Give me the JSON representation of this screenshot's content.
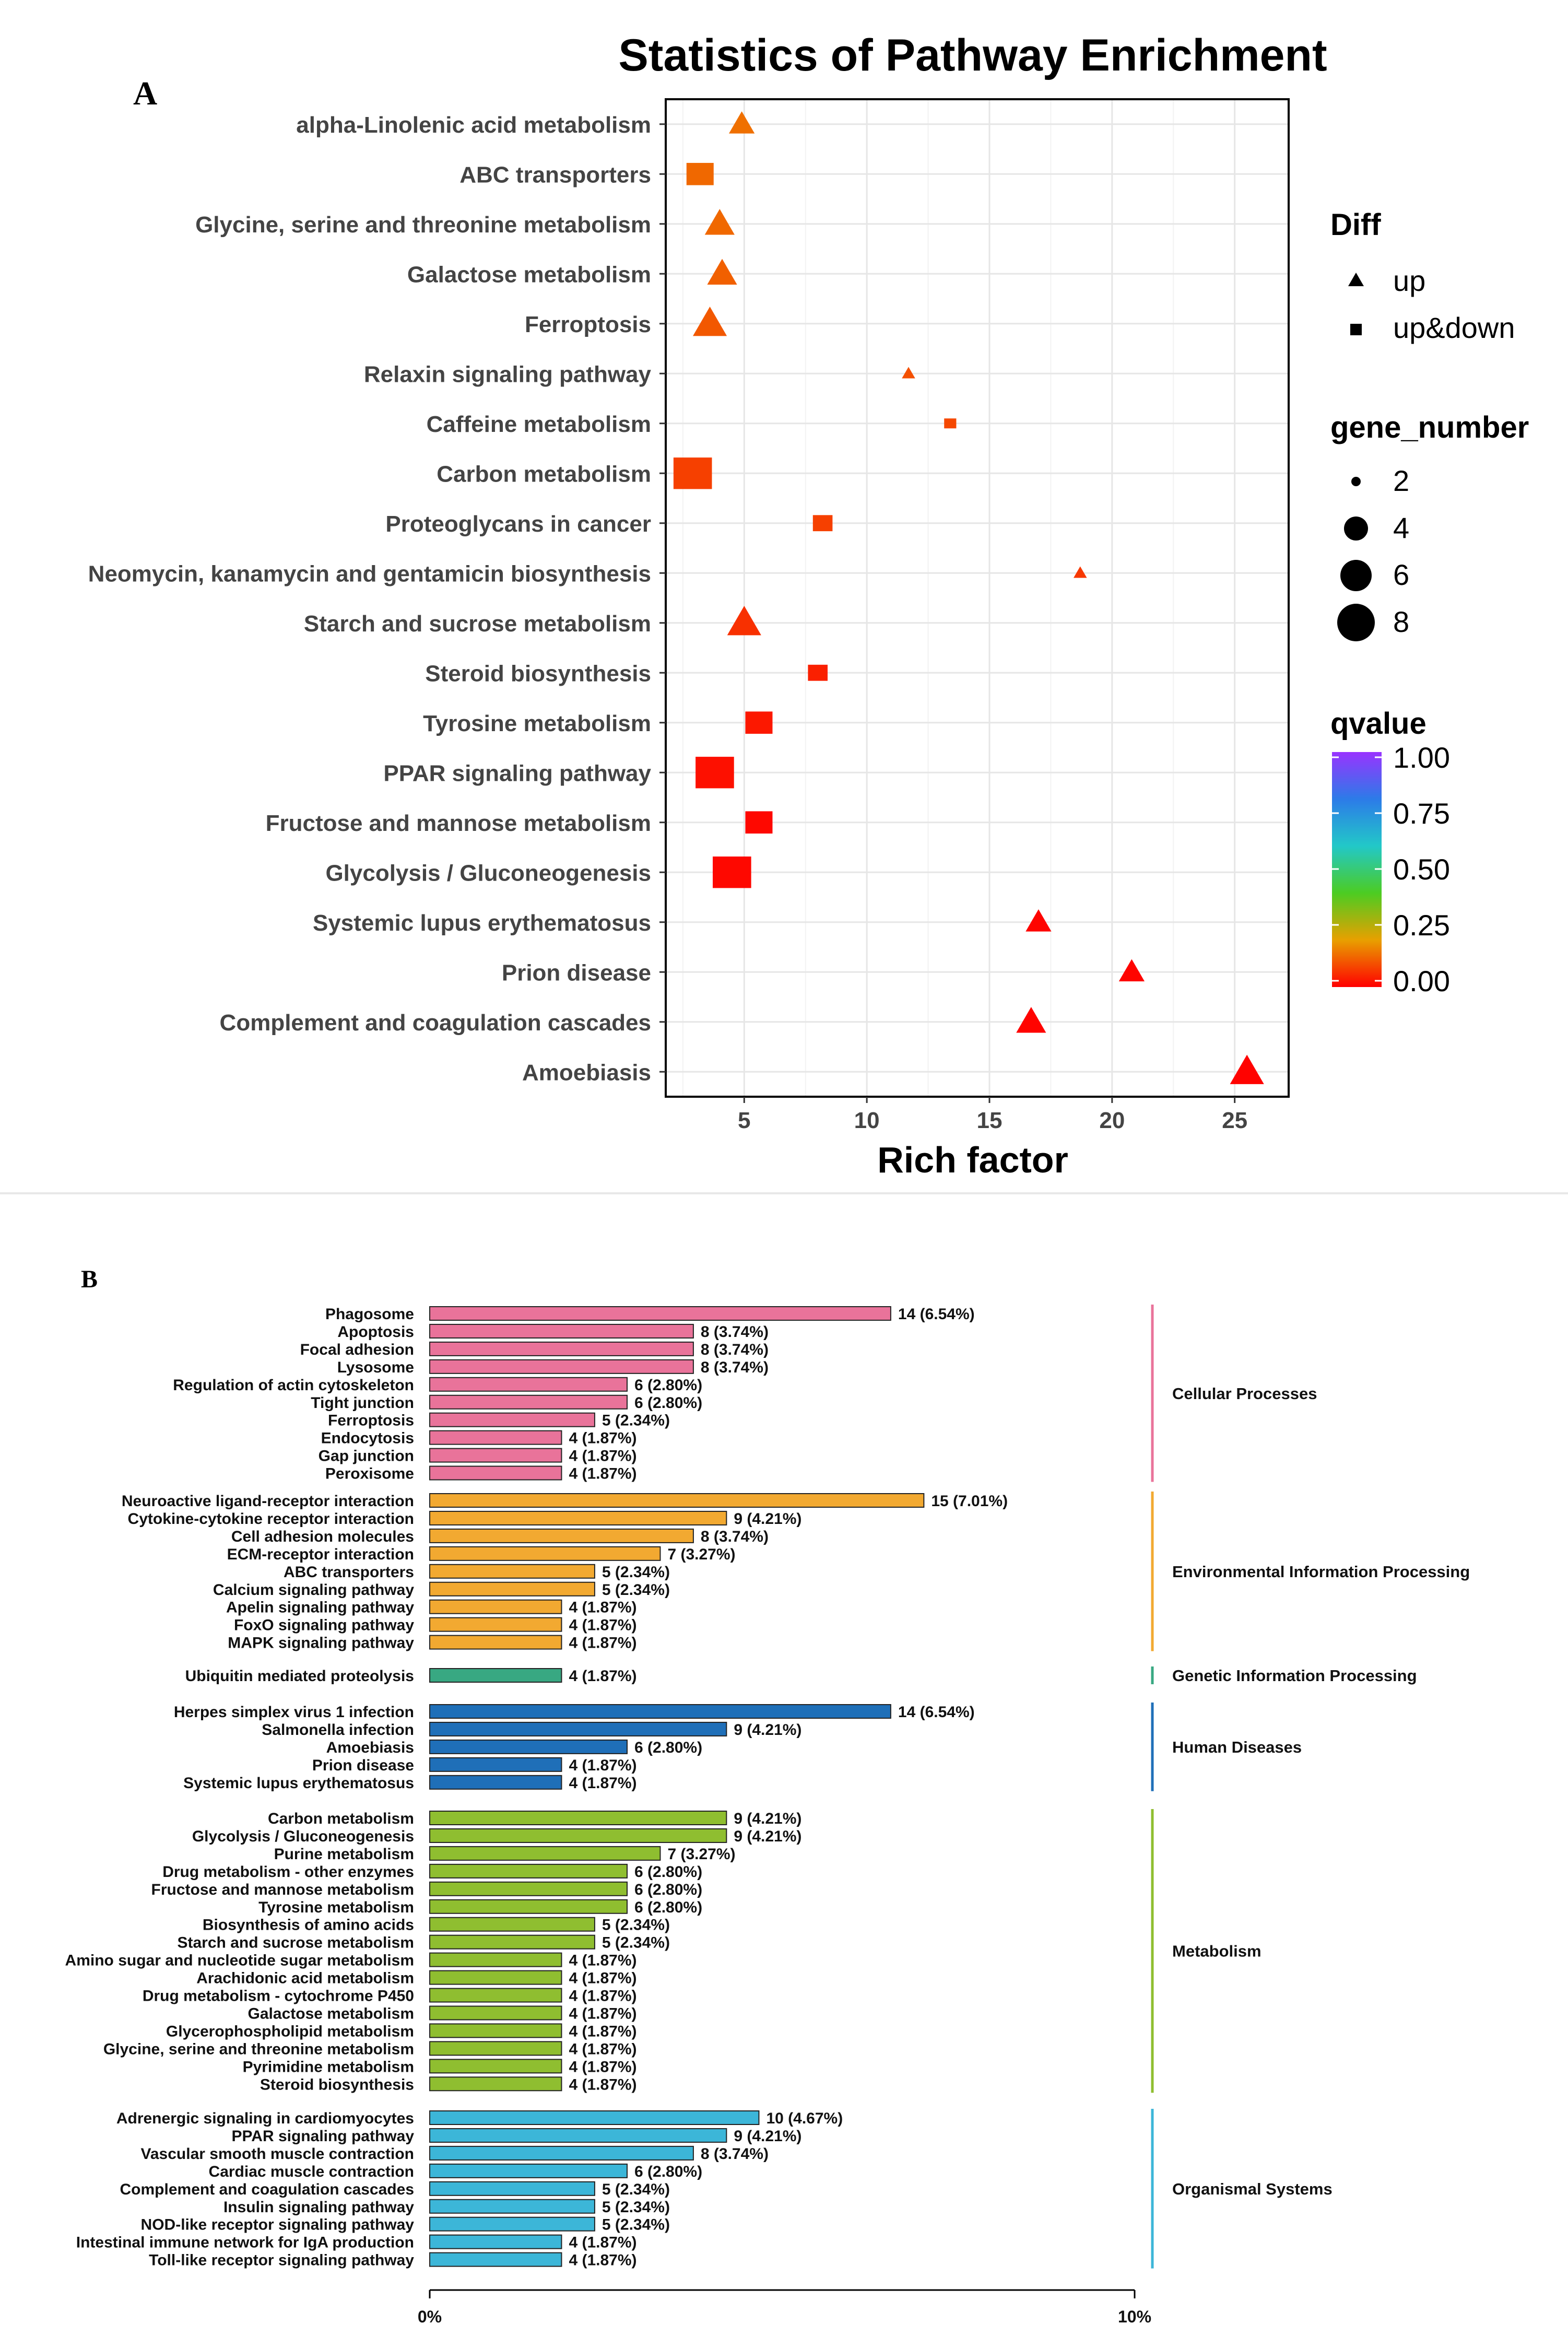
{
  "panel_a": {
    "label": "A",
    "chart_data": {
      "type": "scatter",
      "title": "Statistics of Pathway Enrichment",
      "xlabel": "Rich factor",
      "ylabel": "",
      "xlim": [
        1.8,
        27.2
      ],
      "xticks": [
        5,
        10,
        15,
        20,
        25
      ],
      "categories": [
        "alpha-Linolenic acid metabolism",
        "ABC transporters",
        "Glycine, serine and threonine metabolism",
        "Galactose metabolism",
        "Ferroptosis",
        "Relaxin signaling pathway",
        "Caffeine metabolism",
        "Carbon metabolism",
        "Proteoglycans in cancer",
        "Neomycin, kanamycin and gentamicin biosynthesis",
        "Starch and sucrose metabolism",
        "Steroid biosynthesis",
        "Tyrosine metabolism",
        "PPAR signaling pathway",
        "Fructose and mannose metabolism",
        "Glycolysis / Gluconeogenesis",
        "Systemic lupus erythematosus",
        "Prion disease",
        "Complement and coagulation cascades",
        "Amoebiasis"
      ],
      "points": [
        {
          "pathway": "alpha-Linolenic acid metabolism",
          "rich_factor": 4.9,
          "gene_number": 4,
          "qvalue": 0.14,
          "diff": "up"
        },
        {
          "pathway": "ABC transporters",
          "rich_factor": 3.2,
          "gene_number": 5,
          "qvalue": 0.13,
          "diff": "up&down"
        },
        {
          "pathway": "Glycine, serine and threonine metabolism",
          "rich_factor": 4.0,
          "gene_number": 5,
          "qvalue": 0.13,
          "diff": "up"
        },
        {
          "pathway": "Galactose metabolism",
          "rich_factor": 4.1,
          "gene_number": 5,
          "qvalue": 0.12,
          "diff": "up"
        },
        {
          "pathway": "Ferroptosis",
          "rich_factor": 3.6,
          "gene_number": 6,
          "qvalue": 0.11,
          "diff": "up"
        },
        {
          "pathway": "Relaxin signaling pathway",
          "rich_factor": 11.7,
          "gene_number": 1,
          "qvalue": 0.1,
          "diff": "up"
        },
        {
          "pathway": "Caffeine metabolism",
          "rich_factor": 13.4,
          "gene_number": 1,
          "qvalue": 0.09,
          "diff": "up&down"
        },
        {
          "pathway": "Carbon metabolism",
          "rich_factor": 2.9,
          "gene_number": 8,
          "qvalue": 0.08,
          "diff": "up&down"
        },
        {
          "pathway": "Proteoglycans in cancer",
          "rich_factor": 8.2,
          "gene_number": 3,
          "qvalue": 0.08,
          "diff": "up&down"
        },
        {
          "pathway": "Neomycin, kanamycin and gentamicin biosynthesis",
          "rich_factor": 18.7,
          "gene_number": 1,
          "qvalue": 0.07,
          "diff": "up"
        },
        {
          "pathway": "Starch and sucrose metabolism",
          "rich_factor": 5.0,
          "gene_number": 6,
          "qvalue": 0.06,
          "diff": "up"
        },
        {
          "pathway": "Steroid biosynthesis",
          "rich_factor": 8.0,
          "gene_number": 3,
          "qvalue": 0.04,
          "diff": "up&down"
        },
        {
          "pathway": "Tyrosine metabolism",
          "rich_factor": 5.6,
          "gene_number": 5,
          "qvalue": 0.03,
          "diff": "up&down"
        },
        {
          "pathway": "PPAR signaling pathway",
          "rich_factor": 3.8,
          "gene_number": 8,
          "qvalue": 0.02,
          "diff": "up&down"
        },
        {
          "pathway": "Fructose and mannose metabolism",
          "rich_factor": 5.6,
          "gene_number": 5,
          "qvalue": 0.01,
          "diff": "up&down"
        },
        {
          "pathway": "Glycolysis / Gluconeogenesis",
          "rich_factor": 4.5,
          "gene_number": 8,
          "qvalue": 0.01,
          "diff": "up&down"
        },
        {
          "pathway": "Systemic lupus erythematosus",
          "rich_factor": 17.0,
          "gene_number": 4,
          "qvalue": 0.005,
          "diff": "up"
        },
        {
          "pathway": "Prion disease",
          "rich_factor": 20.8,
          "gene_number": 4,
          "qvalue": 0.005,
          "diff": "up"
        },
        {
          "pathway": "Complement and coagulation cascades",
          "rich_factor": 16.7,
          "gene_number": 5,
          "qvalue": 0.004,
          "diff": "up"
        },
        {
          "pathway": "Amoebiasis",
          "rich_factor": 25.5,
          "gene_number": 6,
          "qvalue": 0.002,
          "diff": "up"
        }
      ],
      "legend": {
        "diff": {
          "title": "Diff",
          "items": [
            {
              "label": "up",
              "shape": "triangle"
            },
            {
              "label": "up&down",
              "shape": "square"
            }
          ]
        },
        "gene_number": {
          "title": "gene_number",
          "items": [
            2,
            4,
            6,
            8
          ]
        },
        "qvalue": {
          "title": "qvalue",
          "ticks": [
            "1.00",
            "0.75",
            "0.50",
            "0.25",
            "0.00"
          ],
          "colors": [
            "#ff0000",
            "#e8a000",
            "#4ccc22",
            "#22c8c8",
            "#2c7be8",
            "#9933ff"
          ]
        }
      },
      "grid": true,
      "legend_position": "right"
    }
  },
  "panel_b": {
    "label": "B",
    "chart_data": {
      "type": "bar",
      "orientation": "horizontal",
      "xlim": [
        0,
        10
      ],
      "xticks": [
        "0%",
        "10%"
      ],
      "groups": [
        {
          "name": "Cellular Processes",
          "color": "#e9739a",
          "items": [
            {
              "label": "Phagosome",
              "count": 14,
              "pct": 6.54
            },
            {
              "label": "Apoptosis",
              "count": 8,
              "pct": 3.74
            },
            {
              "label": "Focal adhesion",
              "count": 8,
              "pct": 3.74
            },
            {
              "label": "Lysosome",
              "count": 8,
              "pct": 3.74
            },
            {
              "label": "Regulation of actin cytoskeleton",
              "count": 6,
              "pct": 2.8
            },
            {
              "label": "Tight junction",
              "count": 6,
              "pct": 2.8
            },
            {
              "label": "Ferroptosis",
              "count": 5,
              "pct": 2.34
            },
            {
              "label": "Endocytosis",
              "count": 4,
              "pct": 1.87
            },
            {
              "label": "Gap junction",
              "count": 4,
              "pct": 1.87
            },
            {
              "label": "Peroxisome",
              "count": 4,
              "pct": 1.87
            }
          ]
        },
        {
          "name": "Environmental Information Processing",
          "color": "#f2a931",
          "items": [
            {
              "label": "Neuroactive ligand-receptor interaction",
              "count": 15,
              "pct": 7.01
            },
            {
              "label": "Cytokine-cytokine receptor interaction",
              "count": 9,
              "pct": 4.21
            },
            {
              "label": "Cell adhesion molecules",
              "count": 8,
              "pct": 3.74
            },
            {
              "label": "ECM-receptor interaction",
              "count": 7,
              "pct": 3.27
            },
            {
              "label": "ABC transporters",
              "count": 5,
              "pct": 2.34
            },
            {
              "label": "Calcium signaling pathway",
              "count": 5,
              "pct": 2.34
            },
            {
              "label": "Apelin signaling pathway",
              "count": 4,
              "pct": 1.87
            },
            {
              "label": "FoxO signaling pathway",
              "count": 4,
              "pct": 1.87
            },
            {
              "label": "MAPK signaling pathway",
              "count": 4,
              "pct": 1.87
            }
          ]
        },
        {
          "name": "Genetic Information Processing",
          "color": "#38a882",
          "items": [
            {
              "label": "Ubiquitin mediated proteolysis",
              "count": 4,
              "pct": 1.87
            }
          ]
        },
        {
          "name": "Human Diseases",
          "color": "#1f6fb8",
          "items": [
            {
              "label": "Herpes simplex virus 1 infection",
              "count": 14,
              "pct": 6.54
            },
            {
              "label": "Salmonella infection",
              "count": 9,
              "pct": 4.21
            },
            {
              "label": "Amoebiasis",
              "count": 6,
              "pct": 2.8
            },
            {
              "label": "Prion disease",
              "count": 4,
              "pct": 1.87
            },
            {
              "label": "Systemic lupus erythematosus",
              "count": 4,
              "pct": 1.87
            }
          ]
        },
        {
          "name": "Metabolism",
          "color": "#8fbe30",
          "items": [
            {
              "label": "Carbon metabolism",
              "count": 9,
              "pct": 4.21
            },
            {
              "label": "Glycolysis / Gluconeogenesis",
              "count": 9,
              "pct": 4.21
            },
            {
              "label": "Purine metabolism",
              "count": 7,
              "pct": 3.27
            },
            {
              "label": "Drug metabolism - other enzymes",
              "count": 6,
              "pct": 2.8
            },
            {
              "label": "Fructose and mannose metabolism",
              "count": 6,
              "pct": 2.8
            },
            {
              "label": "Tyrosine metabolism",
              "count": 6,
              "pct": 2.8
            },
            {
              "label": "Biosynthesis of amino acids",
              "count": 5,
              "pct": 2.34
            },
            {
              "label": "Starch and sucrose metabolism",
              "count": 5,
              "pct": 2.34
            },
            {
              "label": "Amino sugar and nucleotide sugar metabolism",
              "count": 4,
              "pct": 1.87
            },
            {
              "label": "Arachidonic acid metabolism",
              "count": 4,
              "pct": 1.87
            },
            {
              "label": "Drug metabolism - cytochrome P450",
              "count": 4,
              "pct": 1.87
            },
            {
              "label": "Galactose metabolism",
              "count": 4,
              "pct": 1.87
            },
            {
              "label": "Glycerophospholipid metabolism",
              "count": 4,
              "pct": 1.87
            },
            {
              "label": "Glycine, serine and threonine metabolism",
              "count": 4,
              "pct": 1.87
            },
            {
              "label": "Pyrimidine metabolism",
              "count": 4,
              "pct": 1.87
            },
            {
              "label": "Steroid biosynthesis",
              "count": 4,
              "pct": 1.87
            }
          ]
        },
        {
          "name": "Organismal Systems",
          "color": "#3cb6d8",
          "items": [
            {
              "label": "Adrenergic signaling in cardiomyocytes",
              "count": 10,
              "pct": 4.67
            },
            {
              "label": "PPAR signaling pathway",
              "count": 9,
              "pct": 4.21
            },
            {
              "label": "Vascular smooth muscle contraction",
              "count": 8,
              "pct": 3.74
            },
            {
              "label": "Cardiac muscle contraction",
              "count": 6,
              "pct": 2.8
            },
            {
              "label": "Complement and coagulation cascades",
              "count": 5,
              "pct": 2.34
            },
            {
              "label": "Insulin signaling pathway",
              "count": 5,
              "pct": 2.34
            },
            {
              "label": "NOD-like receptor signaling pathway",
              "count": 5,
              "pct": 2.34
            },
            {
              "label": "Intestinal immune network for IgA production",
              "count": 4,
              "pct": 1.87
            },
            {
              "label": "Toll-like receptor signaling pathway",
              "count": 4,
              "pct": 1.87
            }
          ]
        }
      ]
    }
  }
}
